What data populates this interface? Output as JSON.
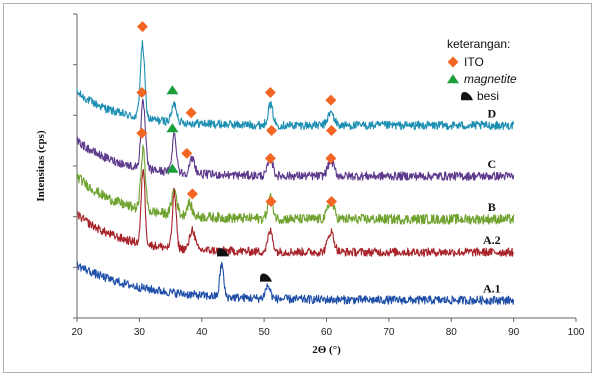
{
  "chart_data": {
    "type": "line",
    "title": "",
    "xlabel": "2Θ (°)",
    "ylabel": "Intensitas (cps)",
    "xlim": [
      20,
      100
    ],
    "xticks": [
      "20",
      "30",
      "40",
      "50",
      "60",
      "70",
      "80",
      "90",
      "100"
    ],
    "yticks_labeled": false,
    "grid": false,
    "legend_position": "top-right",
    "legend": {
      "title": "keterangan:",
      "entries": [
        {
          "label": "ITO",
          "marker": "diamond",
          "color": "#f26522",
          "italic": false
        },
        {
          "label": "magnetite",
          "marker": "triangle",
          "color": "#1a9e3a",
          "italic": true
        },
        {
          "label": "besi",
          "marker": "blob",
          "color": "#111111",
          "italic": false
        }
      ]
    },
    "series": [
      {
        "name": "D",
        "color": "#1d8fb3",
        "x_range": [
          20,
          90
        ],
        "baseline": 7.6,
        "start": 8.9,
        "decay": 7,
        "noise": 0.12,
        "peaks": [
          {
            "x": 30.5,
            "h": 2.9,
            "w": 0.35
          },
          {
            "x": 35.6,
            "h": 0.7,
            "w": 0.4
          },
          {
            "x": 51.0,
            "h": 0.8,
            "w": 0.4
          },
          {
            "x": 60.7,
            "h": 0.5,
            "w": 0.5
          }
        ],
        "markers": [
          {
            "type": "ITO",
            "x": 30.5,
            "y": 11.5
          },
          {
            "type": "ITO",
            "x": 51.0,
            "y": 8.9
          },
          {
            "type": "ITO",
            "x": 60.7,
            "y": 8.6
          }
        ]
      },
      {
        "name": "C",
        "color": "#5e3a8c",
        "x_range": [
          20,
          90
        ],
        "baseline": 5.6,
        "start": 7.0,
        "decay": 7,
        "noise": 0.12,
        "peaks": [
          {
            "x": 30.6,
            "h": 2.6,
            "w": 0.35
          },
          {
            "x": 35.6,
            "h": 1.5,
            "w": 0.35
          },
          {
            "x": 38.5,
            "h": 0.6,
            "w": 0.4
          },
          {
            "x": 51.0,
            "h": 0.7,
            "w": 0.4
          },
          {
            "x": 60.7,
            "h": 0.6,
            "w": 0.5
          }
        ],
        "markers": [
          {
            "type": "ITO",
            "x": 30.4,
            "y": 8.9
          },
          {
            "type": "magnetite",
            "x": 35.3,
            "y": 9.0
          },
          {
            "type": "ITO",
            "x": 38.3,
            "y": 8.1
          },
          {
            "type": "ITO",
            "x": 51.2,
            "y": 7.4
          },
          {
            "type": "ITO",
            "x": 60.8,
            "y": 7.4
          }
        ]
      },
      {
        "name": "B",
        "color": "#6fa22e",
        "x_range": [
          20,
          90
        ],
        "baseline": 3.9,
        "start": 5.6,
        "decay": 7,
        "noise": 0.14,
        "peaks": [
          {
            "x": 30.6,
            "h": 2.4,
            "w": 0.35
          },
          {
            "x": 35.6,
            "h": 1.0,
            "w": 0.4
          },
          {
            "x": 38.0,
            "h": 0.5,
            "w": 0.4
          },
          {
            "x": 51.0,
            "h": 0.9,
            "w": 0.4
          },
          {
            "x": 60.7,
            "h": 0.7,
            "w": 0.5
          }
        ],
        "markers": [
          {
            "type": "ITO",
            "x": 30.4,
            "y": 7.3
          },
          {
            "type": "magnetite",
            "x": 35.3,
            "y": 7.5
          },
          {
            "type": "ITO",
            "x": 37.6,
            "y": 6.5
          },
          {
            "type": "ITO",
            "x": 51.0,
            "y": 6.3
          },
          {
            "type": "ITO",
            "x": 60.7,
            "y": 6.3
          }
        ]
      },
      {
        "name": "A.2",
        "color": "#a8242a",
        "x_range": [
          20,
          90
        ],
        "baseline": 2.6,
        "start": 4.1,
        "decay": 7,
        "noise": 0.12,
        "peaks": [
          {
            "x": 30.6,
            "h": 3.0,
            "w": 0.3
          },
          {
            "x": 35.6,
            "h": 2.2,
            "w": 0.3
          },
          {
            "x": 38.5,
            "h": 0.8,
            "w": 0.4
          },
          {
            "x": 51.0,
            "h": 0.8,
            "w": 0.4
          },
          {
            "x": 60.7,
            "h": 0.8,
            "w": 0.5
          }
        ],
        "markers": [
          {
            "type": "magnetite",
            "x": 35.3,
            "y": 5.9
          },
          {
            "type": "ITO",
            "x": 38.5,
            "y": 4.9
          },
          {
            "type": "ITO",
            "x": 51.1,
            "y": 4.6
          },
          {
            "type": "ITO",
            "x": 60.8,
            "y": 4.6
          }
        ]
      },
      {
        "name": "A.1",
        "color": "#1f4fa8",
        "x_range": [
          20,
          90
        ],
        "baseline": 0.7,
        "start": 2.1,
        "decay": 10,
        "noise": 0.12,
        "peaks": [
          {
            "x": 43.2,
            "h": 1.3,
            "w": 0.3
          },
          {
            "x": 50.6,
            "h": 0.5,
            "w": 0.4
          }
        ],
        "markers": [
          {
            "type": "besi",
            "x": 43.4,
            "y": 2.6
          },
          {
            "type": "besi",
            "x": 50.3,
            "y": 1.6
          }
        ]
      }
    ]
  }
}
